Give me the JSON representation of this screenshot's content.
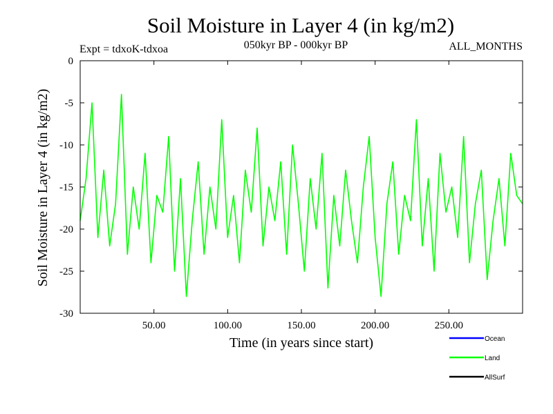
{
  "chart_data": {
    "type": "line",
    "title": "Soil Moisture in Layer 4 (in kg/m2)",
    "expt_label": "Expt = tdxoK-tdxoa",
    "period_label": "050kyr BP - 000kyr BP",
    "months_label": "ALL_MONTHS",
    "xlabel": "Time (in years since start)",
    "ylabel": "Soil Moisture in Layer 4 (in kg/m2)",
    "xlim": [
      0,
      300
    ],
    "ylim": [
      -30,
      0
    ],
    "x_ticks": [
      {
        "value": 50,
        "label": "50.00"
      },
      {
        "value": 100,
        "label": "100.00"
      },
      {
        "value": 150,
        "label": "150.00"
      },
      {
        "value": 200,
        "label": "200.00"
      },
      {
        "value": 250,
        "label": "250.00"
      }
    ],
    "y_ticks": [
      {
        "value": 0,
        "label": "0"
      },
      {
        "value": -5,
        "label": "-5"
      },
      {
        "value": -10,
        "label": "-10"
      },
      {
        "value": -15,
        "label": "-15"
      },
      {
        "value": -20,
        "label": "-20"
      },
      {
        "value": -25,
        "label": "-25"
      },
      {
        "value": -30,
        "label": "-30"
      }
    ],
    "grid": false,
    "legend_position": "bottom-right",
    "series": [
      {
        "name": "Ocean",
        "color": "#0000ff",
        "x": [],
        "y": []
      },
      {
        "name": "Land",
        "color": "#00ff00",
        "x": [
          0,
          4,
          8,
          12,
          16,
          20,
          24,
          28,
          32,
          36,
          40,
          44,
          48,
          52,
          56,
          60,
          64,
          68,
          72,
          76,
          80,
          84,
          88,
          92,
          96,
          100,
          104,
          108,
          112,
          116,
          120,
          124,
          128,
          132,
          136,
          140,
          144,
          148,
          152,
          156,
          160,
          164,
          168,
          172,
          176,
          180,
          184,
          188,
          192,
          196,
          200,
          204,
          208,
          212,
          216,
          220,
          224,
          228,
          232,
          236,
          240,
          244,
          248,
          252,
          256,
          260,
          264,
          268,
          272,
          276,
          280,
          284,
          288,
          292,
          296,
          300
        ],
        "y": [
          -19,
          -14,
          -5,
          -21,
          -13,
          -22,
          -17,
          -4,
          -23,
          -15,
          -20,
          -11,
          -24,
          -16,
          -18,
          -9,
          -25,
          -14,
          -28,
          -19,
          -12,
          -23,
          -15,
          -20,
          -7,
          -21,
          -16,
          -24,
          -13,
          -18,
          -8,
          -22,
          -15,
          -19,
          -12,
          -23,
          -10,
          -17,
          -25,
          -14,
          -20,
          -11,
          -27,
          -16,
          -22,
          -13,
          -19,
          -24,
          -15,
          -9,
          -21,
          -28,
          -17,
          -12,
          -23,
          -16,
          -19,
          -7,
          -22,
          -14,
          -25,
          -11,
          -18,
          -15,
          -21,
          -9,
          -24,
          -17,
          -13,
          -26,
          -19,
          -14,
          -22,
          -11,
          -16,
          -17
        ]
      },
      {
        "name": "AllSurf",
        "color": "#000000",
        "x": [],
        "y": []
      }
    ]
  }
}
